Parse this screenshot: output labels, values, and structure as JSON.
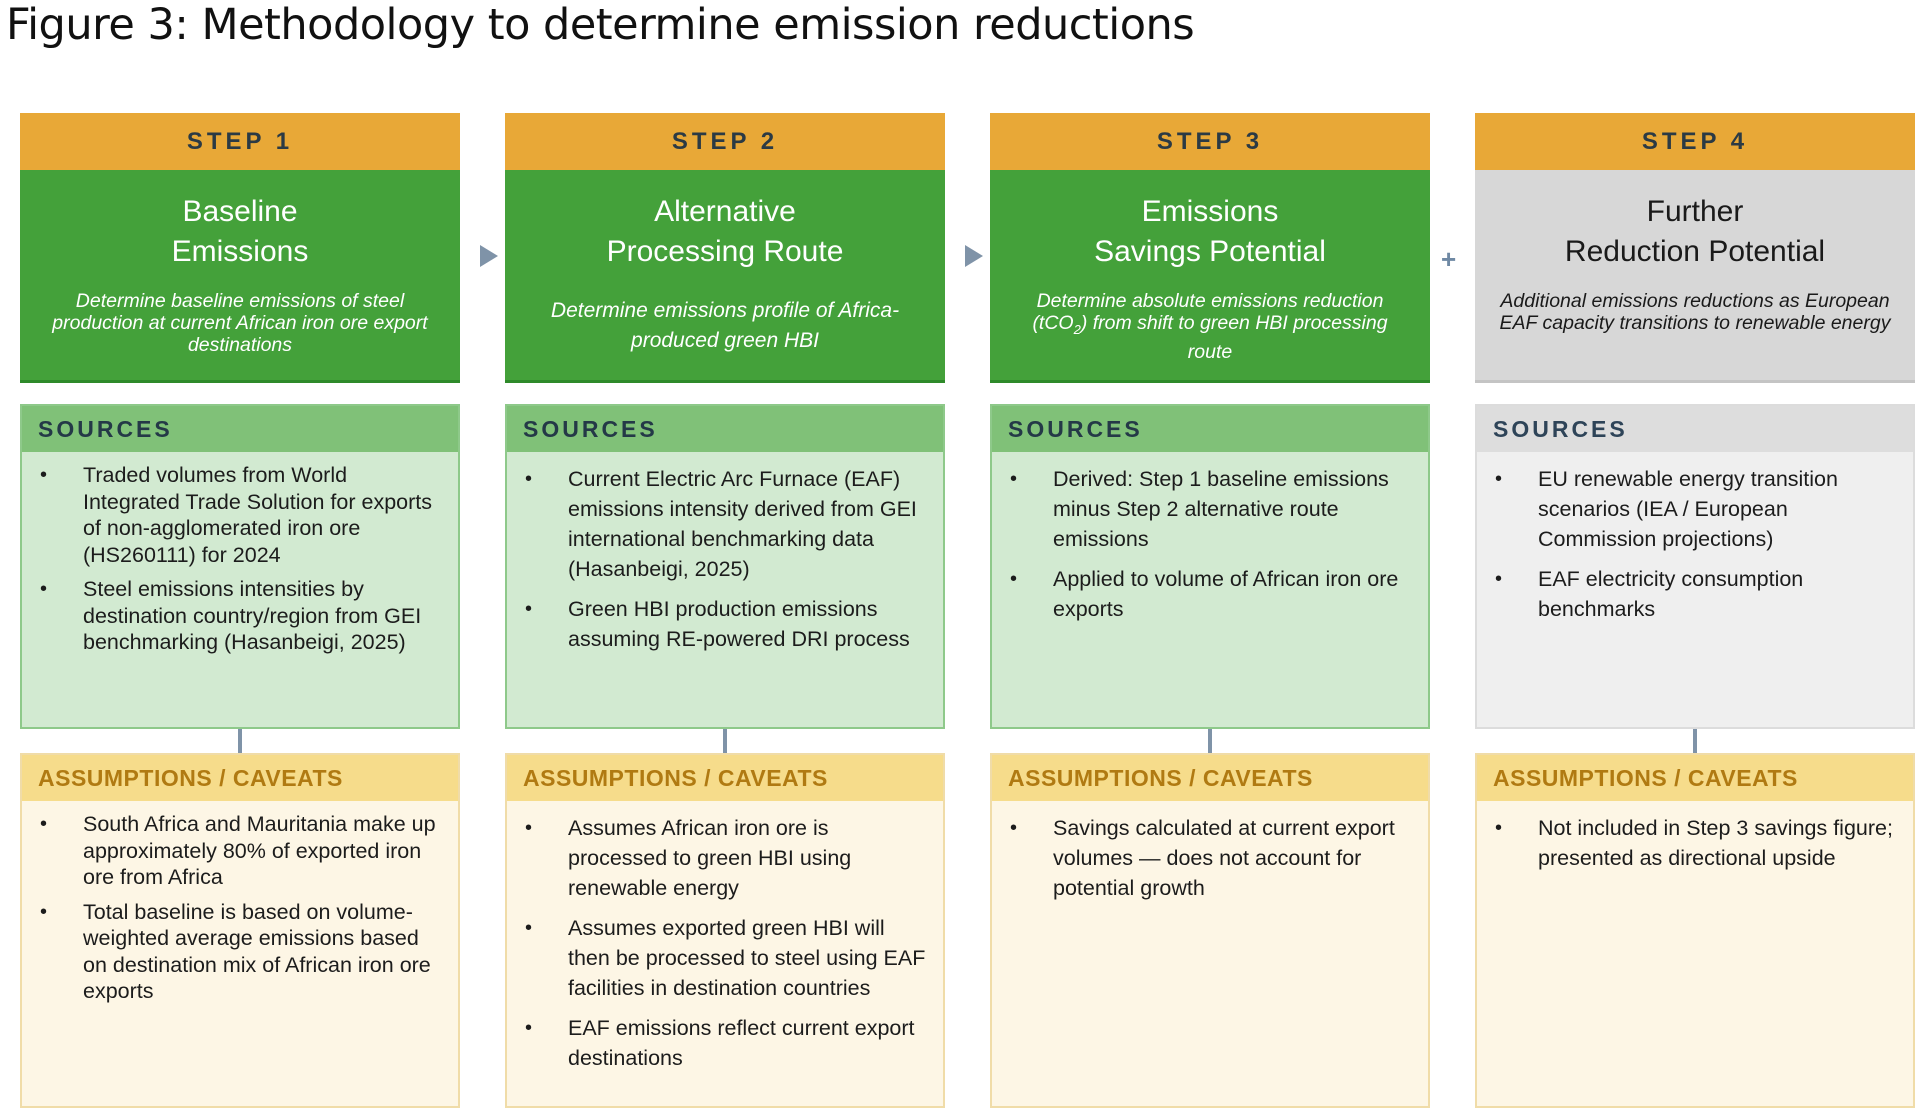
{
  "title": "Figure 3: Methodology to determine emission reductions",
  "labels": {
    "sources": "SOURCES",
    "assumptions": "ASSUMPTIONS / CAVEATS",
    "plus": "+"
  },
  "colors": {
    "step_label": "#e8a837",
    "green_header": "#44a13a",
    "gray_header": "#d7d7d7",
    "sources_fill": "#d2ead1",
    "assumptions_fill": "#fdf6e5",
    "connector": "#7f93a8"
  },
  "steps": [
    {
      "label": "STEP 1",
      "title_line1": "Baseline",
      "title_line2": "Emissions",
      "desc": "Determine baseline emissions of steel production at current African iron ore export destinations",
      "sources": [
        "Traded volumes from World Integrated Trade Solution for exports of non-agglomerated iron ore (HS260111) for 2024",
        "Steel emissions intensities by destination country/region from GEI benchmarking (Hasanbeigi, 2025)"
      ],
      "assumptions": [
        "South Africa and Mauritania make up approximately 80% of exported iron ore from Africa",
        "Total baseline is based on volume-weighted average emissions based on destination mix of African iron ore exports"
      ]
    },
    {
      "label": "STEP 2",
      "title_line1": "Alternative",
      "title_line2": "Processing Route",
      "desc": "Determine emissions profile of Africa-produced green HBI",
      "sources": [
        "Current Electric Arc Furnace (EAF) emissions intensity derived from GEI international benchmarking data (Hasanbeigi, 2025)",
        "Green HBI production emissions assuming RE-powered DRI process"
      ],
      "assumptions": [
        "Assumes African iron ore is processed to green HBI using renewable energy",
        "Assumes exported green HBI will then be processed to steel using EAF facilities in destination countries",
        "EAF emissions reflect current export destinations"
      ]
    },
    {
      "label": "STEP 3",
      "title_line1": "Emissions",
      "title_line2": "Savings Potential",
      "desc_pre": "Determine absolute emissions reduction (tCO",
      "desc_sub": "2",
      "desc_post": ") from shift to green HBI processing route",
      "sources": [
        "Derived: Step 1 baseline emissions minus Step 2 alternative route emissions",
        "Applied to volume of African iron ore exports"
      ],
      "assumptions": [
        "Savings calculated at current export volumes — does not account for potential growth"
      ]
    },
    {
      "label": "STEP 4",
      "title_line1": "Further",
      "title_line2": "Reduction Potential",
      "desc": "Additional emissions reductions as European EAF capacity transitions to renewable energy",
      "sources": [
        "EU renewable energy transition scenarios (IEA / European Commission projections)",
        "EAF electricity consumption benchmarks"
      ],
      "assumptions": [
        "Not included in Step 3 savings figure; presented as directional upside"
      ]
    }
  ]
}
